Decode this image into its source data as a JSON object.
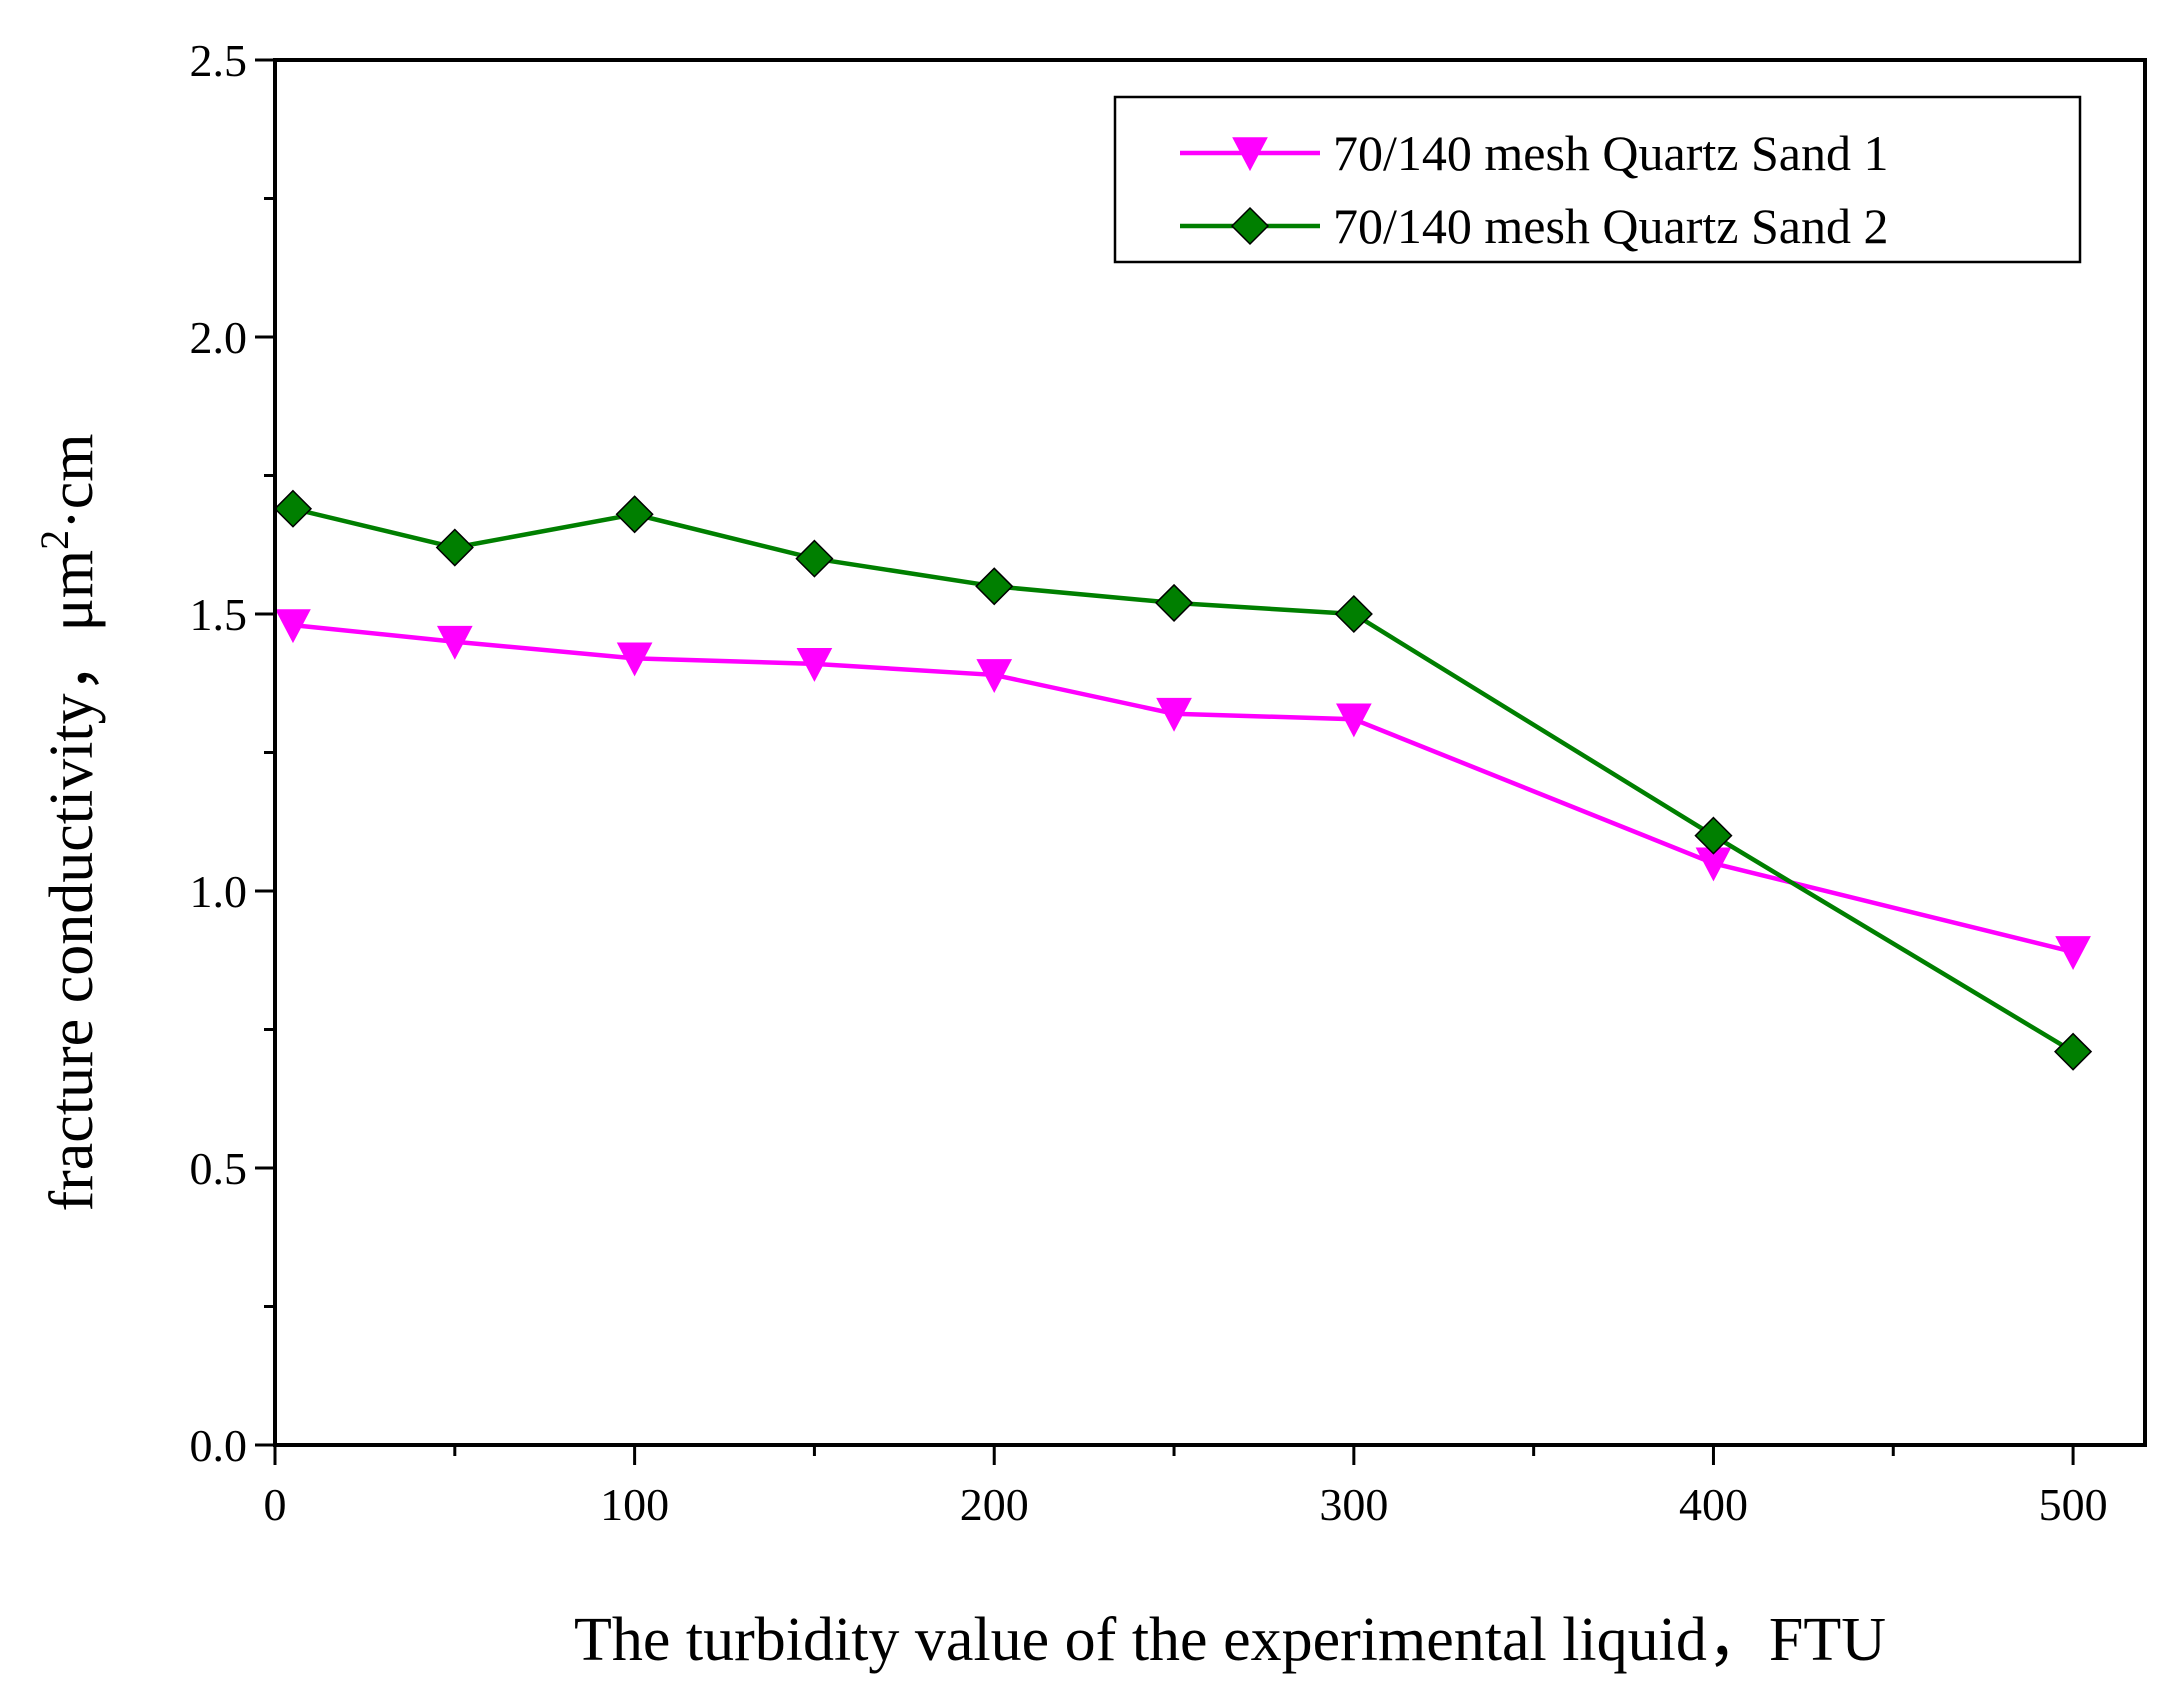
{
  "chart_data": {
    "type": "line",
    "title": "",
    "xlabel": "The turbidity value of the experimental liquid，FTU",
    "ylabel": {
      "base": "fracture conductivity，",
      "unit_prefix": "μm",
      "unit_sup": "2",
      "unit_suffix": "·cm"
    },
    "xlim": [
      0,
      520
    ],
    "ylim": [
      0.0,
      2.5
    ],
    "xticks": [
      "0",
      "100",
      "200",
      "300",
      "400",
      "500"
    ],
    "xtick_values": [
      0,
      100,
      200,
      300,
      400,
      500
    ],
    "xminor_values": [
      50,
      150,
      250,
      350,
      450
    ],
    "yticks": [
      "0.0",
      "0.5",
      "1.0",
      "1.5",
      "2.0",
      "2.5"
    ],
    "ytick_values": [
      0.0,
      0.5,
      1.0,
      1.5,
      2.0,
      2.5
    ],
    "yminor_values": [
      0.25,
      0.75,
      1.25,
      1.75,
      2.25
    ],
    "grid": false,
    "legend_position": "top-right",
    "series": [
      {
        "name": "70/140 mesh Quartz Sand 1",
        "color": "#ff00ff",
        "marker": "triangle-down",
        "x": [
          5,
          50,
          100,
          150,
          200,
          250,
          300,
          400,
          500
        ],
        "y": [
          1.48,
          1.45,
          1.42,
          1.41,
          1.39,
          1.32,
          1.31,
          1.05,
          0.89
        ]
      },
      {
        "name": "70/140 mesh Quartz Sand 2",
        "color": "#007f00",
        "marker": "diamond",
        "x": [
          5,
          50,
          100,
          150,
          200,
          250,
          300,
          400,
          500
        ],
        "y": [
          1.69,
          1.62,
          1.68,
          1.6,
          1.55,
          1.52,
          1.5,
          1.1,
          0.71
        ]
      }
    ]
  }
}
